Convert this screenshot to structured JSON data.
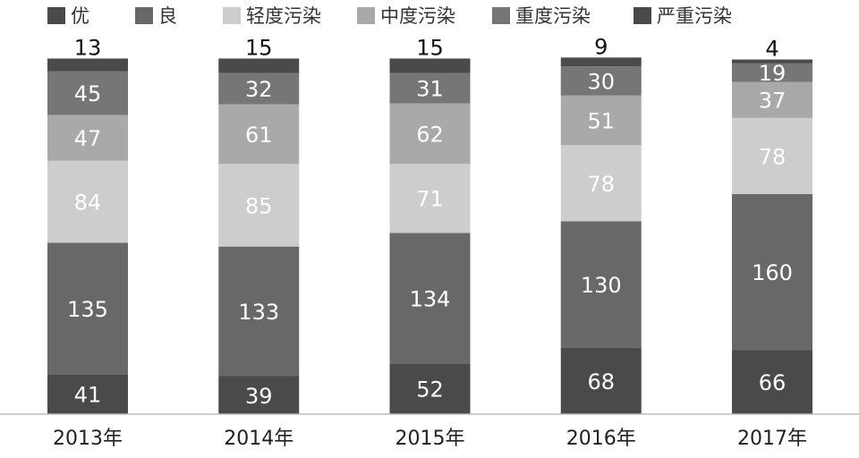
{
  "chart_data": {
    "type": "bar",
    "stacked": true,
    "categories": [
      "2013年",
      "2014年",
      "2015年",
      "2016年",
      "2017年"
    ],
    "series": [
      {
        "name": "优",
        "values": [
          41,
          39,
          52,
          68,
          66
        ],
        "color": "#4a4a4a",
        "label_color": "#ffffff"
      },
      {
        "name": "良",
        "values": [
          135,
          133,
          134,
          130,
          160
        ],
        "color": "#686868",
        "label_color": "#ffffff"
      },
      {
        "name": "轻度污染",
        "values": [
          84,
          85,
          71,
          78,
          78
        ],
        "color": "#cdcdcd",
        "label_color": "#ffffff"
      },
      {
        "name": "中度污染",
        "values": [
          47,
          61,
          62,
          51,
          37
        ],
        "color": "#a9a9a9",
        "label_color": "#ffffff"
      },
      {
        "name": "重度污染",
        "values": [
          45,
          32,
          31,
          30,
          19
        ],
        "color": "#767676",
        "label_color": "#ffffff"
      },
      {
        "name": "严重污染",
        "values": [
          13,
          15,
          15,
          9,
          4
        ],
        "color": "#4a4a4a",
        "label_color": "#111111"
      }
    ],
    "grid": false,
    "legend_position": "top"
  }
}
